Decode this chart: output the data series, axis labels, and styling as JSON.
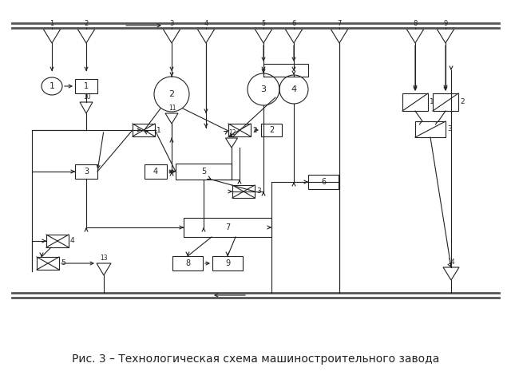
{
  "title": "Рис. 3 – Технологическая схема машиностроительного завода",
  "bg": "#ffffff",
  "lc": "#222222",
  "lw": 0.8
}
